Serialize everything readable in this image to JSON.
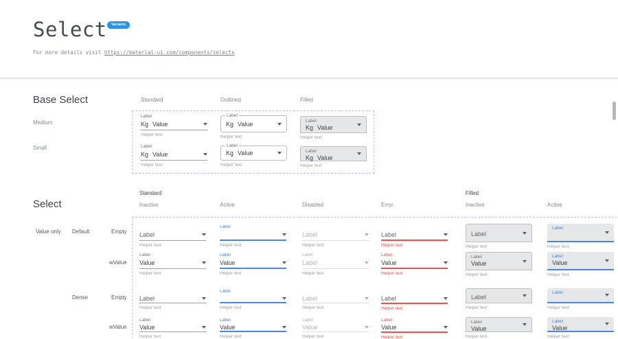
{
  "header": {
    "title": "Select",
    "badge": "Variants",
    "subtitle_prefix": "For more details visit ",
    "link_text": "https://material-ui.com/components/selects"
  },
  "colors": {
    "badge_blue": "#2196F3",
    "active_blue": "#4285F4",
    "error_red": "#EF5047",
    "dashed_border": "#B9C3F1"
  },
  "base_section": {
    "heading": "Base Select",
    "column_headers": [
      "Standard",
      "Outlined",
      "Filled"
    ],
    "row_headers": [
      "Medium",
      "Small"
    ],
    "cell": {
      "label": "Label",
      "prefix": "Kg",
      "value": "Value",
      "helper": "Helper text"
    }
  },
  "matrix_section": {
    "heading": "Select",
    "group_headers": [
      "Standard",
      "Filled"
    ],
    "column_headers": [
      "Inactive",
      "Active",
      "Disabled",
      "Error",
      "Inactive",
      "Active"
    ],
    "row_labels": [
      "Value only",
      "Default",
      "Empty",
      "wValue",
      "Dense",
      "Empty",
      "wValue"
    ],
    "helper": "Helper text",
    "rows": [
      {
        "dense": false,
        "cells": [
          {
            "variant": "standard",
            "state": "inactive",
            "float": "",
            "text": "Label",
            "placeholder": true
          },
          {
            "variant": "standard",
            "state": "active",
            "float": "Label",
            "text": "",
            "placeholder": false
          },
          {
            "variant": "standard",
            "state": "disabled",
            "float": "",
            "text": "Label",
            "placeholder": true
          },
          {
            "variant": "standard",
            "state": "error",
            "float": "",
            "text": "Label",
            "placeholder": true
          },
          {
            "variant": "filled",
            "state": "inactive",
            "float": "",
            "text": "Label",
            "placeholder": true
          },
          {
            "variant": "filled",
            "state": "active",
            "float": "Label",
            "text": "",
            "placeholder": false
          }
        ]
      },
      {
        "dense": false,
        "cells": [
          {
            "variant": "standard",
            "state": "inactive",
            "float": "Label",
            "text": "Value",
            "placeholder": false
          },
          {
            "variant": "standard",
            "state": "active",
            "float": "Label",
            "text": "Value",
            "placeholder": false
          },
          {
            "variant": "standard",
            "state": "disabled",
            "float": "Label",
            "text": "Label",
            "placeholder": true
          },
          {
            "variant": "standard",
            "state": "error",
            "float": "Label",
            "text": "Value",
            "placeholder": false
          },
          {
            "variant": "filled",
            "state": "inactive",
            "float": "Label",
            "text": "Value",
            "placeholder": false
          },
          {
            "variant": "filled",
            "state": "active",
            "float": "Label",
            "text": "Value",
            "placeholder": false
          }
        ]
      },
      {
        "dense": true,
        "cells": [
          {
            "variant": "standard",
            "state": "inactive",
            "float": "",
            "text": "Label",
            "placeholder": true
          },
          {
            "variant": "standard",
            "state": "active",
            "float": "Label",
            "text": "",
            "placeholder": false
          },
          {
            "variant": "standard",
            "state": "disabled",
            "float": "",
            "text": "Label",
            "placeholder": true
          },
          {
            "variant": "standard",
            "state": "error",
            "float": "",
            "text": "Label",
            "placeholder": true
          },
          {
            "variant": "filled",
            "state": "inactive",
            "float": "",
            "text": "Label",
            "placeholder": true
          },
          {
            "variant": "filled",
            "state": "active",
            "float": "Label",
            "text": "",
            "placeholder": false
          }
        ]
      },
      {
        "dense": true,
        "cells": [
          {
            "variant": "standard",
            "state": "inactive",
            "float": "Label",
            "text": "Value",
            "placeholder": false
          },
          {
            "variant": "standard",
            "state": "active",
            "float": "Label",
            "text": "Value",
            "placeholder": false
          },
          {
            "variant": "standard",
            "state": "disabled",
            "float": "Label",
            "text": "Value",
            "placeholder": true
          },
          {
            "variant": "standard",
            "state": "error",
            "float": "Label",
            "text": "Value",
            "placeholder": false
          },
          {
            "variant": "filled",
            "state": "inactive",
            "float": "Label",
            "text": "Value",
            "placeholder": false
          },
          {
            "variant": "filled",
            "state": "active",
            "float": "Label",
            "text": "Value",
            "placeholder": false
          }
        ]
      }
    ]
  }
}
